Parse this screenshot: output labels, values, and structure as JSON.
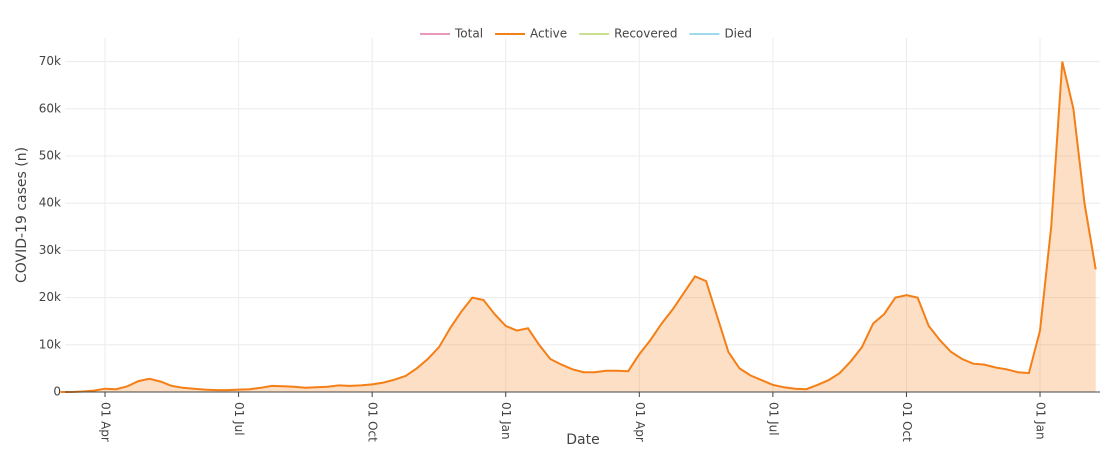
{
  "chart_data": {
    "type": "area",
    "xlabel": "Date",
    "ylabel": "COVID-19 cases (n)",
    "categories": [
      null,
      null,
      null,
      null,
      "01 Apr",
      null,
      null,
      null,
      null,
      null,
      null,
      null,
      null,
      null,
      null,
      null,
      "01 Jul",
      null,
      null,
      null,
      null,
      null,
      null,
      null,
      null,
      null,
      null,
      null,
      "01 Oct",
      null,
      null,
      null,
      null,
      null,
      null,
      null,
      null,
      null,
      null,
      null,
      "01 Jan",
      null,
      null,
      null,
      null,
      null,
      null,
      null,
      null,
      null,
      null,
      null,
      "01 Apr",
      null,
      null,
      null,
      null,
      null,
      null,
      null,
      null,
      null,
      null,
      null,
      "01 Jul",
      null,
      null,
      null,
      null,
      null,
      null,
      null,
      null,
      null,
      null,
      null,
      "01 Oct",
      null,
      null,
      null,
      null,
      null,
      null,
      null,
      null,
      null,
      null,
      null,
      "01 Jan",
      null,
      null,
      null,
      null,
      null
    ],
    "series": [
      {
        "name": "Total",
        "color": "#e377a9",
        "visible": false
      },
      {
        "name": "Active",
        "color": "#f57f17",
        "visible": true,
        "values": [
          0,
          0,
          100,
          300,
          700,
          600,
          1200,
          2300,
          2800,
          2200,
          1300,
          900,
          700,
          500,
          400,
          400,
          500,
          600,
          900,
          1300,
          1200,
          1100,
          900,
          1000,
          1100,
          1400,
          1300,
          1400,
          1600,
          2000,
          2600,
          3400,
          5000,
          7000,
          9500,
          13500,
          17000,
          20000,
          19500,
          16500,
          14000,
          13000,
          13500,
          10000,
          7000,
          5800,
          4800,
          4200,
          4200,
          4500,
          4500,
          4400,
          8000,
          11000,
          14500,
          17500,
          21000,
          24500,
          23500,
          16000,
          8500,
          5000,
          3500,
          2500,
          1500,
          1000,
          700,
          600,
          1500,
          2500,
          4000,
          6500,
          9500,
          14500,
          16500,
          20000,
          20500,
          20000,
          14000,
          11000,
          8500,
          7000,
          6000,
          5800,
          5200,
          4800,
          4200,
          4000,
          13000,
          35000,
          70000,
          60000,
          40000,
          26000
        ]
      },
      {
        "name": "Recovered",
        "color": "#b5d86a",
        "visible": false
      },
      {
        "name": "Died",
        "color": "#7fcde8",
        "visible": false
      }
    ],
    "ylim": [
      0,
      75000
    ],
    "yticks": [
      0,
      {
        "value": 10000,
        "label": "10k"
      },
      {
        "value": 20000,
        "label": "20k"
      },
      {
        "value": 30000,
        "label": "30k"
      },
      {
        "value": 40000,
        "label": "40k"
      },
      {
        "value": 50000,
        "label": "50k"
      },
      {
        "value": 60000,
        "label": "60k"
      },
      {
        "value": 70000,
        "label": "70k"
      }
    ],
    "grid": true,
    "legend": "top"
  }
}
